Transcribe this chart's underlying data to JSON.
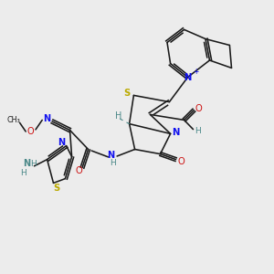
{
  "bg": "#ececec",
  "C": "#1a1a1a",
  "N": "#1010ee",
  "O": "#cc1111",
  "S": "#bbaa00",
  "H": "#4a8888",
  "lw": 1.15,
  "fs": 6.8,
  "fs_sm": 5.8
}
